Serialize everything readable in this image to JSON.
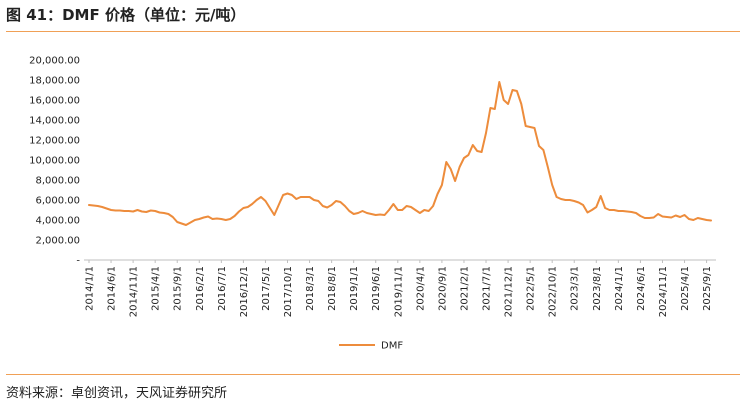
{
  "title": "图 41：DMF 价格（单位：元/吨）",
  "source": "资料来源：卓创资讯，天风证券研究所",
  "chart_data": {
    "type": "line",
    "ylim": [
      0,
      20000
    ],
    "y_ticks": [
      0,
      2000,
      4000,
      6000,
      8000,
      10000,
      12000,
      14000,
      16000,
      18000,
      20000
    ],
    "y_tick_labels": [
      "-",
      "2,000.00",
      "4,000.00",
      "6,000.00",
      "8,000.00",
      "10,000.00",
      "12,000.00",
      "14,000.00",
      "16,000.00",
      "18,000.00",
      "20,000.00"
    ],
    "x_tick_labels": [
      "2014/1/1",
      "2014/6/1",
      "2014/11/1",
      "2015/4/1",
      "2015/9/1",
      "2016/2/1",
      "2016/7/1",
      "2016/12/1",
      "2017/5/1",
      "2017/10/1",
      "2018/3/1",
      "2018/8/1",
      "2019/1/1",
      "2019/6/1",
      "2019/11/1",
      "2020/4/1",
      "2020/9/1",
      "2021/2/1",
      "2021/7/1",
      "2021/12/1",
      "2022/5/1",
      "2022/10/1",
      "2023/3/1",
      "2023/8/1",
      "2024/1/1",
      "2024/6/1",
      "2024/11/1",
      "2025/4/1",
      "2025/9/1"
    ],
    "grid": false,
    "legend_position": "bottom",
    "line_color": "#ed8c3c",
    "series": [
      {
        "name": "DMF",
        "x": [
          "2014/1/1",
          "2014/2/1",
          "2014/3/1",
          "2014/4/1",
          "2014/5/1",
          "2014/6/1",
          "2014/7/1",
          "2014/8/1",
          "2014/9/1",
          "2014/10/1",
          "2014/11/1",
          "2014/12/1",
          "2015/1/1",
          "2015/2/1",
          "2015/3/1",
          "2015/4/1",
          "2015/5/1",
          "2015/6/1",
          "2015/7/1",
          "2015/8/1",
          "2015/9/1",
          "2015/10/1",
          "2015/11/1",
          "2015/12/1",
          "2016/1/1",
          "2016/2/1",
          "2016/3/1",
          "2016/4/1",
          "2016/5/1",
          "2016/6/1",
          "2016/7/1",
          "2016/8/1",
          "2016/9/1",
          "2016/10/1",
          "2016/11/1",
          "2016/12/1",
          "2017/1/1",
          "2017/2/1",
          "2017/3/1",
          "2017/4/1",
          "2017/5/1",
          "2017/6/1",
          "2017/7/1",
          "2017/8/1",
          "2017/9/1",
          "2017/10/1",
          "2017/11/1",
          "2017/12/1",
          "2018/1/1",
          "2018/2/1",
          "2018/3/1",
          "2018/4/1",
          "2018/5/1",
          "2018/6/1",
          "2018/7/1",
          "2018/8/1",
          "2018/9/1",
          "2018/10/1",
          "2018/11/1",
          "2018/12/1",
          "2019/1/1",
          "2019/2/1",
          "2019/3/1",
          "2019/4/1",
          "2019/5/1",
          "2019/6/1",
          "2019/7/1",
          "2019/8/1",
          "2019/9/1",
          "2019/10/1",
          "2019/11/1",
          "2019/12/1",
          "2020/1/1",
          "2020/2/1",
          "2020/3/1",
          "2020/4/1",
          "2020/5/1",
          "2020/6/1",
          "2020/7/1",
          "2020/8/1",
          "2020/9/1",
          "2020/10/1",
          "2020/11/1",
          "2020/12/1",
          "2021/1/1",
          "2021/2/1",
          "2021/3/1",
          "2021/4/1",
          "2021/5/1",
          "2021/6/1",
          "2021/7/1",
          "2021/8/1",
          "2021/9/1",
          "2021/10/1",
          "2021/11/1",
          "2021/12/1",
          "2022/1/1",
          "2022/2/1",
          "2022/3/1",
          "2022/4/1",
          "2022/5/1",
          "2022/6/1",
          "2022/7/1",
          "2022/8/1",
          "2022/9/1",
          "2022/10/1",
          "2022/11/1",
          "2022/12/1",
          "2023/1/1",
          "2023/2/1",
          "2023/3/1",
          "2023/4/1",
          "2023/5/1",
          "2023/6/1",
          "2023/7/1",
          "2023/8/1",
          "2023/9/1",
          "2023/10/1",
          "2023/11/1",
          "2023/12/1",
          "2024/1/1",
          "2024/2/1",
          "2024/3/1",
          "2024/4/1",
          "2024/5/1",
          "2024/6/1",
          "2024/7/1",
          "2024/8/1",
          "2024/9/1",
          "2024/10/1",
          "2024/11/1",
          "2024/12/1",
          "2025/1/1",
          "2025/2/1",
          "2025/3/1",
          "2025/4/1",
          "2025/5/1",
          "2025/6/1",
          "2025/7/1",
          "2025/8/1",
          "2025/9/1",
          "2025/10/1"
        ],
        "values": [
          5500,
          5450,
          5400,
          5300,
          5150,
          5000,
          4950,
          4950,
          4900,
          4900,
          4850,
          5000,
          4850,
          4800,
          4950,
          4900,
          4750,
          4700,
          4600,
          4300,
          3800,
          3650,
          3500,
          3750,
          4000,
          4100,
          4250,
          4350,
          4100,
          4150,
          4100,
          4000,
          4100,
          4400,
          4850,
          5200,
          5300,
          5600,
          6000,
          6300,
          5900,
          5200,
          4500,
          5500,
          6500,
          6650,
          6500,
          6100,
          6300,
          6300,
          6300,
          6000,
          5900,
          5400,
          5250,
          5500,
          5900,
          5800,
          5400,
          4900,
          4600,
          4700,
          4900,
          4700,
          4600,
          4500,
          4550,
          4500,
          5000,
          5600,
          5000,
          5000,
          5400,
          5300,
          5000,
          4700,
          5000,
          4900,
          5400,
          6600,
          7500,
          9800,
          9100,
          7900,
          9300,
          10200,
          10500,
          11500,
          10900,
          10800,
          12700,
          15200,
          15100,
          17800,
          16000,
          15600,
          17000,
          16900,
          15600,
          13400,
          13300,
          13200,
          11400,
          11000,
          9300,
          7500,
          6300,
          6100,
          6000,
          6000,
          5900,
          5750,
          5500,
          4750,
          5000,
          5300,
          6400,
          5200,
          5000,
          5000,
          4900,
          4900,
          4850,
          4800,
          4700,
          4400,
          4200,
          4200,
          4250,
          4600,
          4350,
          4300,
          4250,
          4450,
          4300,
          4500,
          4100,
          4000,
          4200,
          4100,
          4000,
          3950
        ]
      }
    ]
  }
}
